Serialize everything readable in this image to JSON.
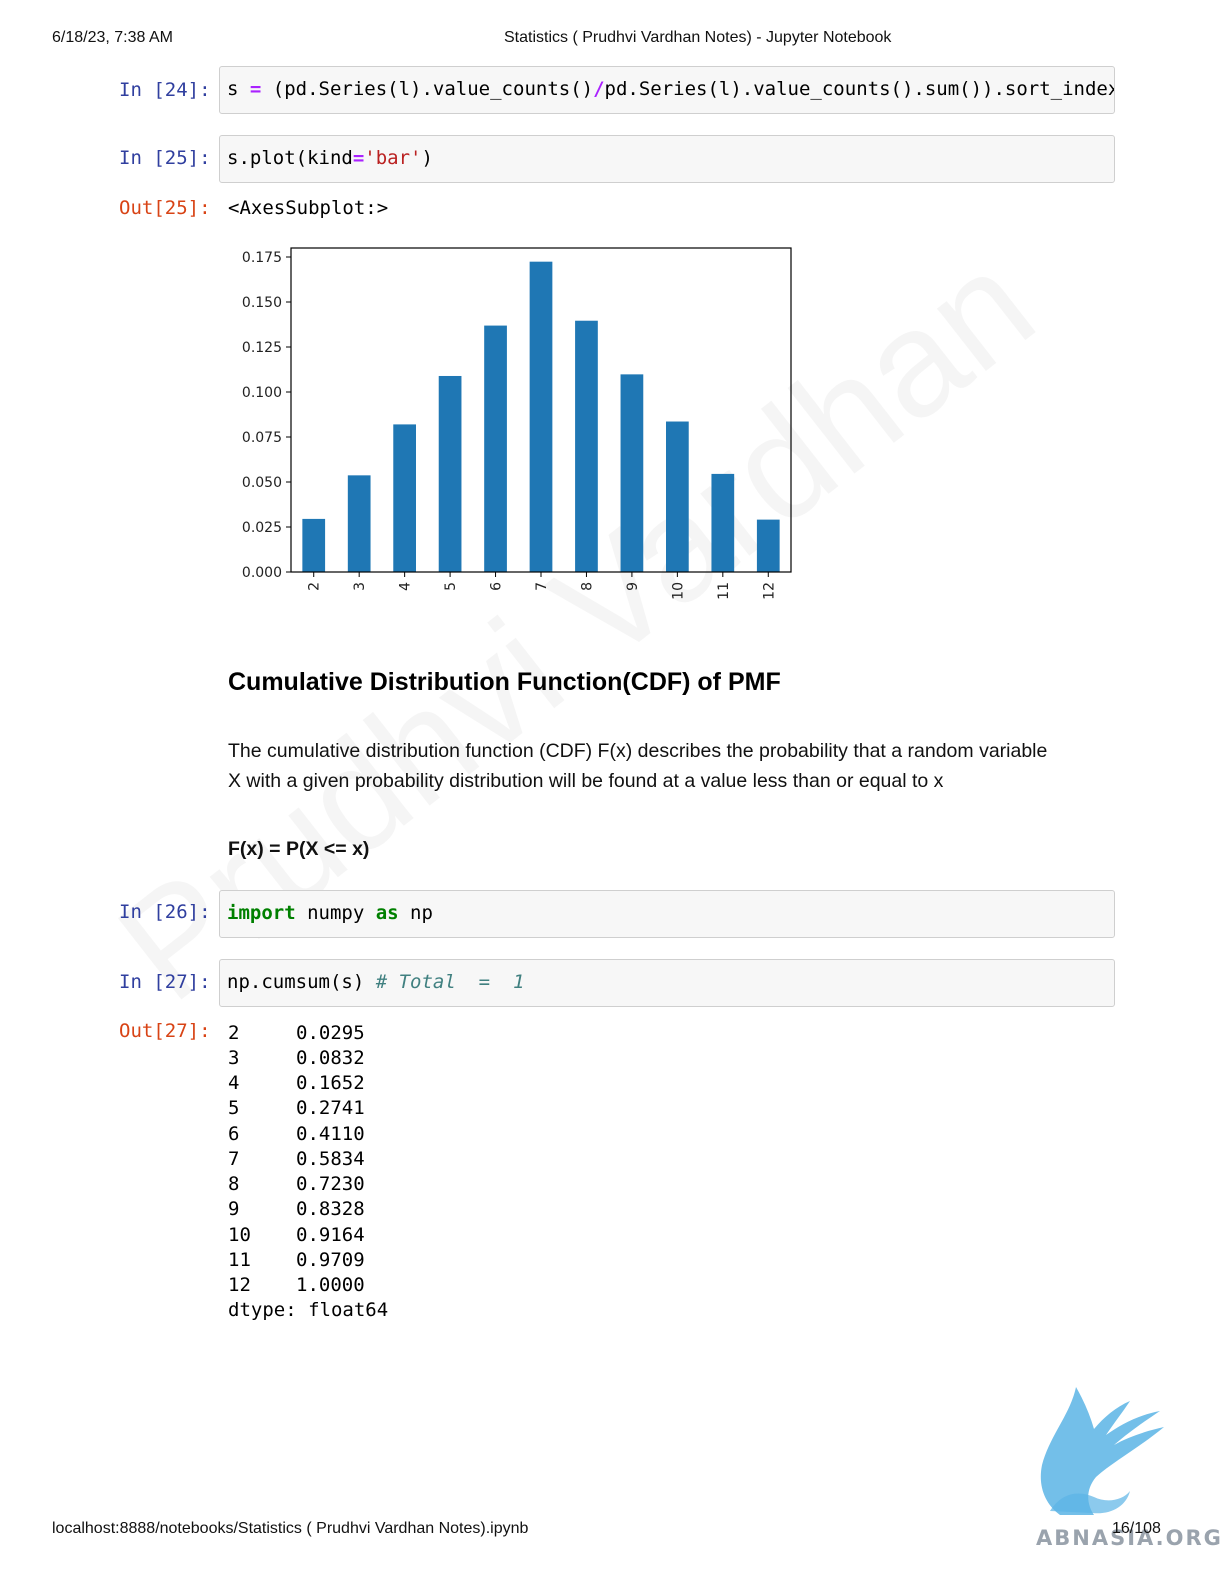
{
  "header": {
    "datetime": "6/18/23, 7:38 AM",
    "title": "Statistics ( Prudhvi Vardhan Notes) - Jupyter Notebook"
  },
  "cells": {
    "c24": {
      "prompt": "In [24]:"
    },
    "c25": {
      "prompt": "In [25]:",
      "out_prompt": "Out[25]:",
      "output_text": "<AxesSubplot:>"
    },
    "c26": {
      "prompt": "In [26]:"
    },
    "c27": {
      "prompt": "In [27]:",
      "out_prompt": "Out[27]:"
    }
  },
  "code_tokens": {
    "c24": [
      "s ",
      "=",
      " (pd.Series(l).value_counts()",
      "/",
      "pd.Series(l).value_counts().sum()).sort_index()"
    ],
    "c25": [
      "s.plot(kind",
      "=",
      "'bar'",
      ")"
    ],
    "c26": [
      "import",
      " numpy ",
      "as",
      " np"
    ],
    "c27": [
      "np.cumsum(s) ",
      "# Total  =  1"
    ]
  },
  "chart_data": {
    "type": "bar",
    "categories": [
      "2",
      "3",
      "4",
      "5",
      "6",
      "7",
      "8",
      "9",
      "10",
      "11",
      "12"
    ],
    "values": [
      0.0295,
      0.0537,
      0.082,
      0.1089,
      0.1369,
      0.1724,
      0.1396,
      0.1098,
      0.0836,
      0.0545,
      0.0291
    ],
    "yticks": [
      "0.000",
      "0.025",
      "0.050",
      "0.075",
      "0.100",
      "0.125",
      "0.150",
      "0.175"
    ],
    "ylim": [
      0,
      0.18
    ],
    "color": "#1f77b4",
    "title": "",
    "xlabel": "",
    "ylabel": ""
  },
  "markdown": {
    "heading": "Cumulative Distribution Function(CDF) of PMF",
    "paragraph_line1": "The cumulative distribution function (CDF) F(x) describes the probability that a random variable",
    "paragraph_line2": "X with a given probability distribution will be found at a value less than or equal to x",
    "formula": "F(x) = P(X <= x)"
  },
  "cumsum_output": {
    "rows": [
      {
        "index": "2",
        "value": "0.0295"
      },
      {
        "index": "3",
        "value": "0.0832"
      },
      {
        "index": "4",
        "value": "0.1652"
      },
      {
        "index": "5",
        "value": "0.2741"
      },
      {
        "index": "6",
        "value": "0.4110"
      },
      {
        "index": "7",
        "value": "0.5834"
      },
      {
        "index": "8",
        "value": "0.7230"
      },
      {
        "index": "9",
        "value": "0.8328"
      },
      {
        "index": "10",
        "value": "0.9164"
      },
      {
        "index": "11",
        "value": "0.9709"
      },
      {
        "index": "12",
        "value": "1.0000"
      }
    ],
    "dtype": "dtype: float64"
  },
  "watermark": "Prudhvi Vardhan",
  "footer": {
    "url": "localhost:8888/notebooks/Statistics ( Prudhvi Vardhan Notes).ipynb",
    "page": "16/108",
    "logo_text": "ABNASIA.ORG"
  },
  "logo": {
    "icon": "griffin-logo-icon",
    "color": "#5bb4e5"
  }
}
